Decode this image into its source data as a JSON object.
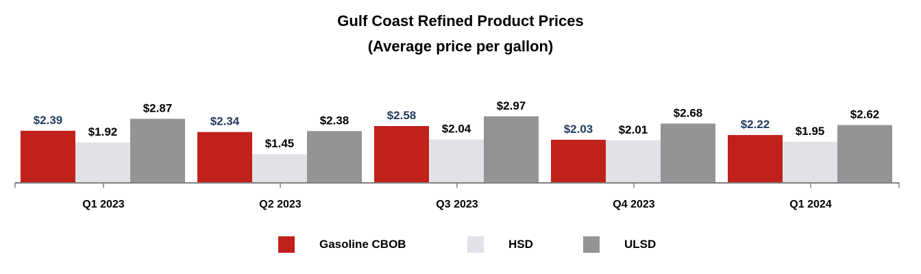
{
  "chart_data": {
    "type": "bar",
    "title": "Gulf Coast Refined Product Prices",
    "subtitle": "(Average price per gallon)",
    "categories": [
      "Q1 2023",
      "Q2 2023",
      "Q3 2023",
      "Q4 2023",
      "Q1 2024"
    ],
    "series": [
      {
        "name": "Gasoline CBOB",
        "values": [
          2.39,
          2.34,
          2.58,
          2.03,
          2.22
        ],
        "labels": [
          "$2.39",
          "$2.34",
          "$2.58",
          "$2.03",
          "$2.22"
        ],
        "color": "#c0211a",
        "label_color": "#1f3b5a"
      },
      {
        "name": "HSD",
        "values": [
          1.92,
          1.45,
          2.04,
          2.01,
          1.95
        ],
        "labels": [
          "$1.92",
          "$1.45",
          "$2.04",
          "$2.01",
          "$1.95"
        ],
        "color": "#e1e2e7",
        "label_color": "#000000"
      },
      {
        "name": "ULSD",
        "values": [
          2.87,
          2.38,
          2.97,
          2.68,
          2.62
        ],
        "labels": [
          "$2.87",
          "$2.38",
          "$2.97",
          "$2.68",
          "$2.62"
        ],
        "color": "#949494",
        "label_color": "#000000"
      }
    ],
    "legend_position": "bottom",
    "grid": false
  }
}
